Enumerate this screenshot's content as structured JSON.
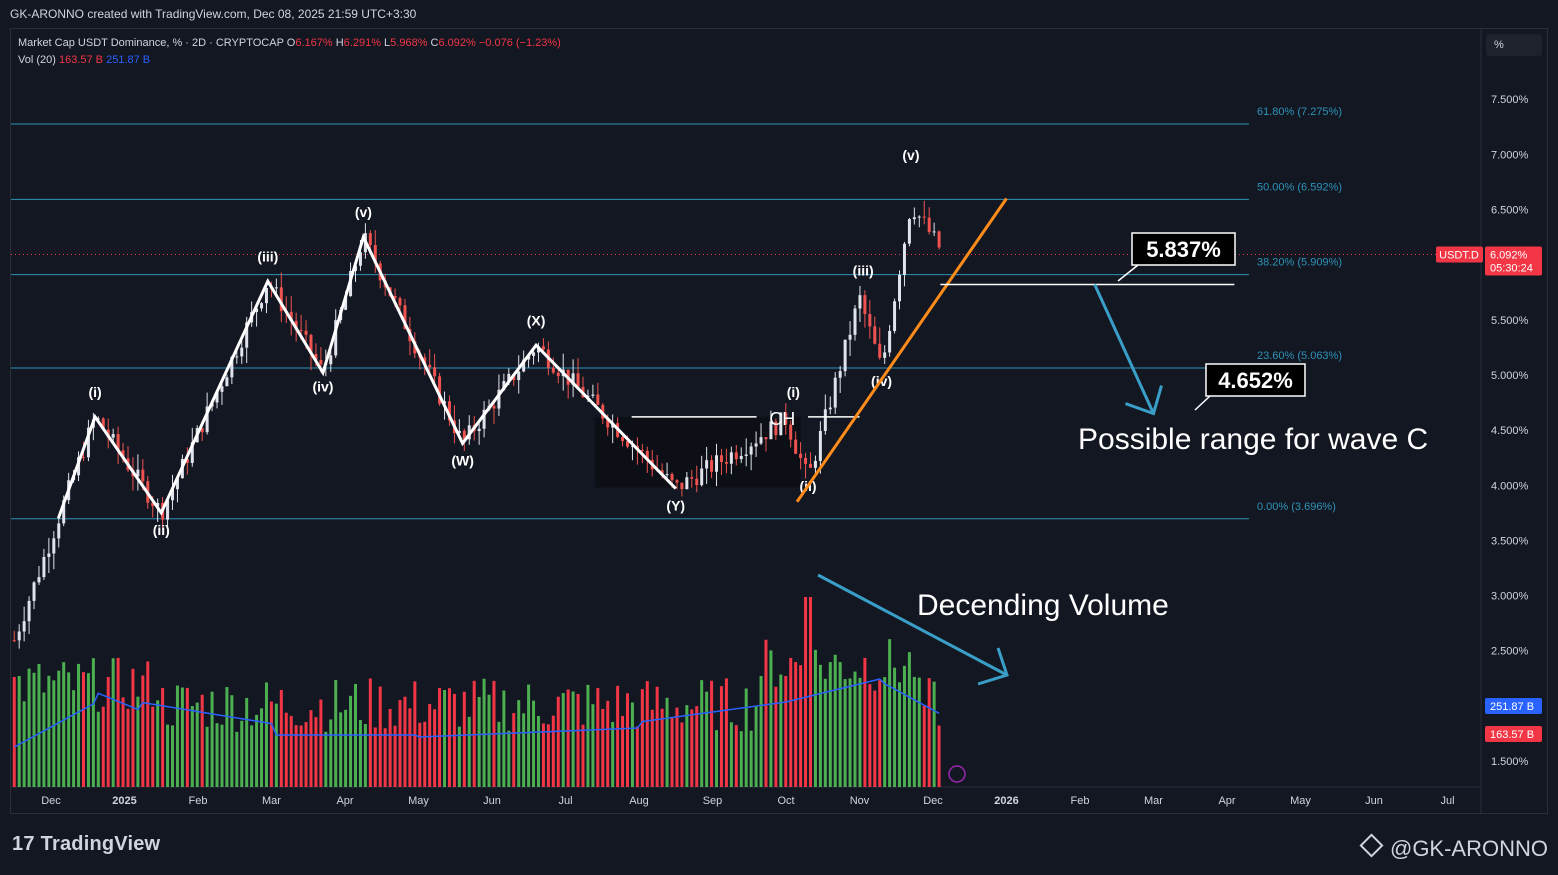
{
  "header": {
    "attribution": "GK-ARONNO created with TradingView.com, Dec 08, 2025 21:59 UTC+3:30"
  },
  "legend": {
    "symbol": "Market Cap USDT Dominance, % · 2D · CRYPTOCAP",
    "o_label": "O",
    "o_value": "6.167%",
    "h_label": "H",
    "h_value": "6.291%",
    "l_label": "L",
    "l_value": "5.968%",
    "c_label": "C",
    "c_value": "6.092%",
    "change": "−0.076 (−1.23%)",
    "vol_label": "Vol (20)",
    "vol_value": "163.57 B",
    "vol_ma_value": "251.87 B"
  },
  "scale_button": "%",
  "footer": {
    "brand": "TradingView",
    "credit": "@GK-ARONNO"
  },
  "colors": {
    "background": "#131722",
    "up": "#26a69a",
    "down": "#ef5350",
    "vol_up": "#4caf50",
    "vol_down": "#f23645",
    "fib": "#2e93b8",
    "wave": "#ffffff",
    "trend": "#ff8c1a",
    "arrow": "#3a9fc8",
    "vol_ma": "#2962ff",
    "price_tag": "#f23645"
  },
  "chart_data": {
    "type": "candlestick",
    "title": "Market Cap USDT Dominance, % · 2D · CRYPTOCAP",
    "ylim": [
      1.1,
      8.1
    ],
    "y_ticks": [
      "7.500%",
      "7.000%",
      "6.500%",
      "6.000%",
      "5.500%",
      "5.000%",
      "4.500%",
      "4.000%",
      "3.500%",
      "3.000%",
      "2.500%",
      "1.500%"
    ],
    "y_tick_values": [
      7.5,
      7.0,
      6.5,
      6.0,
      5.5,
      5.0,
      4.5,
      4.0,
      3.5,
      3.0,
      2.5,
      1.5
    ],
    "x_ticks": [
      "Dec",
      "2025",
      "Feb",
      "Mar",
      "Apr",
      "May",
      "Jun",
      "Jul",
      "Aug",
      "Sep",
      "Oct",
      "Nov",
      "Dec",
      "2026",
      "Feb",
      "Mar",
      "Apr",
      "May",
      "Jun",
      "Jul"
    ],
    "x_tick_months": [
      0,
      1,
      2,
      3,
      4,
      5,
      6,
      7,
      8,
      9,
      10,
      11,
      12,
      13,
      14,
      15,
      16,
      17,
      18,
      19
    ],
    "wave_path": [
      [
        0.1,
        3.7
      ],
      [
        0.6,
        4.62
      ],
      [
        1.5,
        3.75
      ],
      [
        2.95,
        5.85
      ],
      [
        3.7,
        5.02
      ],
      [
        4.25,
        6.25
      ],
      [
        5.6,
        4.38
      ],
      [
        6.6,
        5.27
      ],
      [
        8.5,
        3.97
      ]
    ],
    "wave_labels": [
      {
        "text": "(i)",
        "month": 0.6,
        "value": 4.8
      },
      {
        "text": "(ii)",
        "month": 1.5,
        "value": 3.55
      },
      {
        "text": "(iii)",
        "month": 2.95,
        "value": 6.03
      },
      {
        "text": "(iv)",
        "month": 3.7,
        "value": 4.85
      },
      {
        "text": "(v)",
        "month": 4.25,
        "value": 6.43
      },
      {
        "text": "(W)",
        "month": 5.6,
        "value": 4.18
      },
      {
        "text": "(X)",
        "month": 6.6,
        "value": 5.45
      },
      {
        "text": "(Y)",
        "month": 8.5,
        "value": 3.77
      },
      {
        "text": "(i)",
        "month": 10.1,
        "value": 4.8
      },
      {
        "text": "(ii)",
        "month": 10.3,
        "value": 3.95
      },
      {
        "text": "(iii)",
        "month": 11.05,
        "value": 5.9
      },
      {
        "text": "(iv)",
        "month": 11.3,
        "value": 4.9
      },
      {
        "text": "(v)",
        "month": 11.7,
        "value": 6.95
      }
    ],
    "fib_levels": [
      {
        "label": "61.80% (7.275%)",
        "value": 7.275
      },
      {
        "label": "50.00% (6.592%)",
        "value": 6.592
      },
      {
        "label": "38.20% (5.909%)",
        "value": 5.909
      },
      {
        "label": "23.60% (5.063%)",
        "value": 5.063
      },
      {
        "label": "0.00% (3.696%)",
        "value": 3.696
      }
    ],
    "ch_label": "CH",
    "ch_level": 4.62,
    "trendline": [
      [
        10.15,
        3.85
      ],
      [
        13.0,
        6.6
      ]
    ],
    "support_line": {
      "value": 5.82,
      "from": 12.1,
      "to": 16.1
    },
    "targets": [
      {
        "label": "5.837%",
        "value": 5.837
      },
      {
        "label": "4.652%",
        "value": 4.652
      }
    ],
    "projection_arrow": [
      [
        14.2,
        5.82
      ],
      [
        15.0,
        4.65
      ]
    ],
    "annotations": [
      "Possible range for wave C",
      "Decending Volume"
    ],
    "last_price": {
      "symbol": "USDT.D",
      "value": "6.092%",
      "countdown": "05:30:24",
      "level": 6.092
    },
    "volume_ma_label": "251.87 B",
    "volume_label": "163.57 B"
  }
}
